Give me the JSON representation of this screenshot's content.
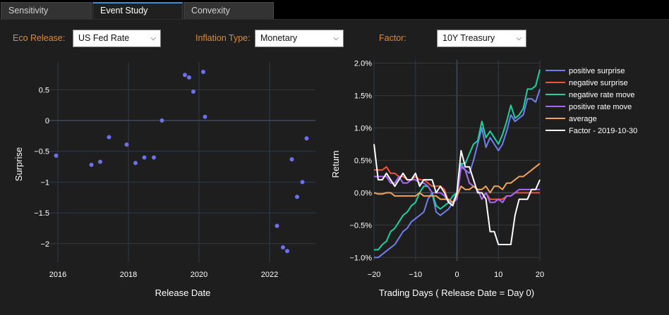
{
  "tabs": [
    {
      "label": "Sensitivity",
      "active": false
    },
    {
      "label": "Event Study",
      "active": true
    },
    {
      "label": "Convexity",
      "active": false
    }
  ],
  "controls": {
    "eco_release": {
      "label": "Eco Release:",
      "value": "US Fed Rate"
    },
    "inflation_type": {
      "label": "Inflation Type:",
      "value": "Monetary"
    },
    "factor": {
      "label": "Factor:",
      "value": "10Y Treasury"
    }
  },
  "colors": {
    "accent_label": "#e08a2c",
    "active_tab": "#3d8fd6",
    "plot_bg": "#1e1e1e",
    "grid": "#2f3a48"
  },
  "chart_data": [
    {
      "type": "scatter",
      "title": "",
      "xlabel": "Release Date",
      "ylabel": "Surprise",
      "x_ticks": [
        "2016",
        "2018",
        "2020",
        "2022"
      ],
      "y_ticks": [
        "0.5",
        "0",
        "−0.5",
        "−1",
        "−1.5",
        "−2"
      ],
      "xlim": [
        2015.7,
        2023.3
      ],
      "ylim": [
        -2.3,
        0.95
      ],
      "marker_color": "#6b70f0",
      "points": [
        {
          "x": 2015.95,
          "y": -0.57
        },
        {
          "x": 2016.95,
          "y": -0.72
        },
        {
          "x": 2017.2,
          "y": -0.67
        },
        {
          "x": 2017.45,
          "y": -0.27
        },
        {
          "x": 2017.95,
          "y": -0.39
        },
        {
          "x": 2018.2,
          "y": -0.69
        },
        {
          "x": 2018.45,
          "y": -0.6
        },
        {
          "x": 2018.72,
          "y": -0.6
        },
        {
          "x": 2018.95,
          "y": 0.0
        },
        {
          "x": 2019.6,
          "y": 0.74
        },
        {
          "x": 2019.72,
          "y": 0.7
        },
        {
          "x": 2019.84,
          "y": 0.47
        },
        {
          "x": 2020.12,
          "y": 0.79
        },
        {
          "x": 2020.17,
          "y": 0.06
        },
        {
          "x": 2022.21,
          "y": -1.71
        },
        {
          "x": 2022.38,
          "y": -2.06
        },
        {
          "x": 2022.5,
          "y": -2.12
        },
        {
          "x": 2022.63,
          "y": -0.63
        },
        {
          "x": 2022.78,
          "y": -1.24
        },
        {
          "x": 2022.93,
          "y": -1.0
        },
        {
          "x": 2023.05,
          "y": -0.29
        }
      ]
    },
    {
      "type": "line",
      "title": "",
      "xlabel": "Trading Days ( Release Date =  Day 0)",
      "ylabel": "Return",
      "x_ticks": [
        "−20",
        "−10",
        "0",
        "10",
        "20"
      ],
      "y_ticks": [
        "2.0%",
        "1.5%",
        "1.0%",
        "0.5%",
        "0.0%",
        "−0.5%",
        "−1.0%"
      ],
      "xlim": [
        -20,
        20
      ],
      "ylim": [
        -1.05,
        2.05
      ],
      "legend_position": "top-right",
      "x": [
        -20,
        -19,
        -18,
        -17,
        -16,
        -15,
        -14,
        -13,
        -12,
        -11,
        -10,
        -9,
        -8,
        -7,
        -6,
        -5,
        -4,
        -3,
        -2,
        -1,
        0,
        1,
        2,
        3,
        4,
        5,
        6,
        7,
        8,
        9,
        10,
        11,
        12,
        13,
        14,
        15,
        16,
        17,
        18,
        19,
        20
      ],
      "series": [
        {
          "name": "positive surprise",
          "color": "#6f7ff0",
          "values": [
            -1.0,
            -1.0,
            -0.95,
            -0.9,
            -0.85,
            -0.8,
            -0.7,
            -0.6,
            -0.55,
            -0.45,
            -0.4,
            -0.35,
            -0.3,
            -0.1,
            0.0,
            -0.3,
            -0.35,
            -0.3,
            -0.25,
            -0.15,
            0.0,
            0.45,
            0.35,
            0.3,
            0.5,
            0.75,
            1.0,
            0.7,
            0.85,
            0.75,
            0.65,
            0.75,
            0.95,
            1.2,
            1.1,
            1.15,
            1.2,
            1.45,
            1.45,
            1.4,
            1.6
          ]
        },
        {
          "name": "negative surprise",
          "color": "#ef553b",
          "values": [
            0.35,
            0.35,
            0.35,
            0.4,
            0.3,
            0.3,
            0.25,
            0.25,
            0.2,
            0.2,
            0.25,
            0.2,
            0.2,
            0.15,
            0.1,
            0.1,
            0.1,
            0.05,
            -0.15,
            -0.15,
            -0.1,
            0.4,
            0.35,
            0.15,
            0.1,
            0.05,
            -0.1,
            0.0,
            -0.1,
            -0.1,
            -0.1,
            -0.1,
            -0.05,
            -0.05,
            0.0,
            0.0,
            0.0,
            0.0,
            0.0,
            0.0,
            0.0
          ]
        },
        {
          "name": "negative rate move",
          "color": "#1cd2a3",
          "values": [
            -0.88,
            -0.88,
            -0.8,
            -0.75,
            -0.6,
            -0.55,
            -0.45,
            -0.35,
            -0.3,
            -0.2,
            -0.15,
            0.0,
            0.1,
            0.1,
            0.0,
            -0.2,
            -0.25,
            -0.2,
            -0.15,
            -0.05,
            0.0,
            0.45,
            0.45,
            0.6,
            0.75,
            0.8,
            1.1,
            0.85,
            0.95,
            0.85,
            0.75,
            0.9,
            1.1,
            1.35,
            1.15,
            1.2,
            1.3,
            1.6,
            1.6,
            1.65,
            1.9
          ]
        },
        {
          "name": "positive rate move",
          "color": "#ab63fa",
          "values": [
            0.25,
            0.25,
            0.25,
            0.25,
            0.15,
            0.15,
            0.25,
            0.15,
            0.15,
            0.2,
            0.2,
            0.15,
            0.15,
            0.1,
            0.0,
            0.0,
            0.0,
            -0.05,
            -0.15,
            -0.15,
            -0.1,
            0.4,
            0.35,
            0.15,
            0.1,
            0.05,
            -0.1,
            0.0,
            -0.15,
            -0.15,
            -0.1,
            -0.15,
            -0.05,
            -0.05,
            0.0,
            0.05,
            0.05,
            0.05,
            0.05,
            0.05,
            0.05
          ]
        },
        {
          "name": "average",
          "color": "#f0a35a",
          "values": [
            0.0,
            -0.02,
            -0.02,
            0.0,
            0.0,
            -0.05,
            -0.05,
            -0.05,
            -0.05,
            -0.05,
            -0.05,
            0.0,
            -0.05,
            -0.05,
            -0.05,
            -0.05,
            -0.1,
            -0.1,
            -0.1,
            -0.15,
            -0.05,
            0.1,
            0.05,
            0.05,
            0.1,
            0.05,
            0.05,
            0.1,
            0.0,
            0.1,
            0.1,
            0.05,
            0.15,
            0.15,
            0.2,
            0.25,
            0.25,
            0.3,
            0.35,
            0.4,
            0.45
          ]
        },
        {
          "name": "Factor - 2019-10-30",
          "color": "#ffffff",
          "values": [
            0.75,
            0.2,
            0.2,
            0.3,
            0.2,
            0.1,
            0.2,
            0.3,
            0.2,
            0.2,
            0.3,
            0.1,
            0.2,
            0.2,
            0.2,
            0.0,
            0.1,
            0.0,
            -0.15,
            -0.2,
            0.0,
            0.65,
            0.4,
            0.4,
            0.2,
            0.0,
            0.0,
            -0.1,
            -0.6,
            -0.6,
            -0.8,
            -0.8,
            -0.8,
            -0.8,
            -0.35,
            -0.1,
            -0.1,
            -0.1,
            0.05,
            0.05,
            0.2
          ]
        }
      ]
    }
  ]
}
